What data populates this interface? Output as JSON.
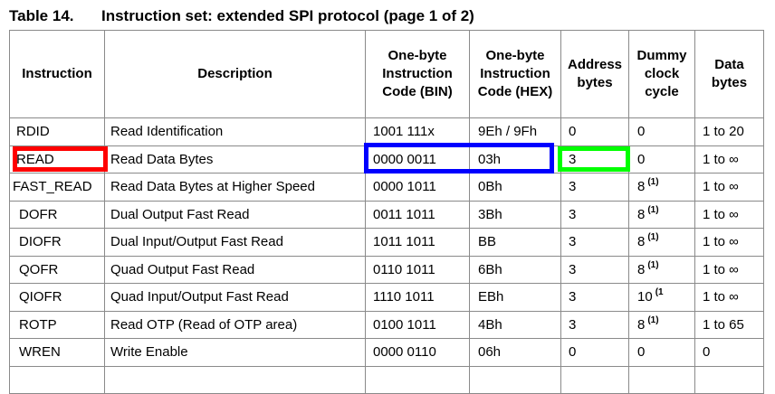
{
  "caption": {
    "number": "Table 14.",
    "title": "Instruction set: extended SPI protocol (page 1 of 2)"
  },
  "headers": {
    "instruction": [
      "Instruction"
    ],
    "description": [
      "Description"
    ],
    "bin": [
      "One-byte",
      "Instruction",
      "Code (BIN)"
    ],
    "hex": [
      "One-byte",
      "Instruction",
      "Code (HEX)"
    ],
    "address": [
      "Address",
      "bytes"
    ],
    "dummy": [
      "Dummy",
      "clock",
      "cycle"
    ],
    "data": [
      "Data",
      "bytes"
    ]
  },
  "rows": [
    {
      "instruction": "RDID",
      "description": "Read Identification",
      "bin": "1001 111x",
      "hex": "9Eh / 9Fh",
      "address": "0",
      "dummy": "0",
      "dummy_note": "",
      "data": "1 to 20"
    },
    {
      "instruction": "READ",
      "description": "Read Data Bytes",
      "bin": "0000 0011",
      "hex": "03h",
      "address": "3",
      "dummy": "0",
      "dummy_note": "",
      "data": "1 to ∞"
    },
    {
      "instruction": "FAST_READ",
      "description": "Read Data Bytes at Higher Speed",
      "bin": "0000 1011",
      "hex": "0Bh",
      "address": "3",
      "dummy": "8",
      "dummy_note": "(1)",
      "data": "1 to ∞"
    },
    {
      "instruction": "DOFR",
      "description": "Dual Output Fast Read",
      "bin": "0011 1011",
      "hex": "3Bh",
      "address": "3",
      "dummy": "8",
      "dummy_note": "(1)",
      "data": "1 to ∞"
    },
    {
      "instruction": "DIOFR",
      "description": "Dual Input/Output Fast Read",
      "bin": "1011 1011",
      "hex": "BB",
      "address": "3",
      "dummy": "8",
      "dummy_note": "(1)",
      "data": "1 to ∞"
    },
    {
      "instruction": "QOFR",
      "description": "Quad Output Fast Read",
      "bin": "0110 1011",
      "hex": "6Bh",
      "address": "3",
      "dummy": "8",
      "dummy_note": "(1)",
      "data": "1 to ∞"
    },
    {
      "instruction": "QIOFR",
      "description": "Quad Input/Output Fast Read",
      "bin": "1110 1011",
      "hex": "EBh",
      "address": "3",
      "dummy": "10",
      "dummy_note": "(1",
      "data": "1 to ∞"
    },
    {
      "instruction": "ROTP",
      "description": "Read OTP (Read of OTP area)",
      "bin": "0100 1011",
      "hex": "4Bh",
      "address": "3",
      "dummy": "8",
      "dummy_note": "(1)",
      "data": "1 to 65"
    },
    {
      "instruction": "WREN",
      "description": "Write Enable",
      "bin": "0000 0110",
      "hex": "06h",
      "address": "0",
      "dummy": "0",
      "dummy_note": "",
      "data": "0"
    },
    {
      "instruction": "",
      "description": "",
      "bin": "",
      "hex": "",
      "address": "",
      "dummy": "",
      "dummy_note": "",
      "data": ""
    }
  ],
  "highlight_colors": {
    "instruction": "#ff0000",
    "code": "#0000ff",
    "address": "#00ff00"
  }
}
